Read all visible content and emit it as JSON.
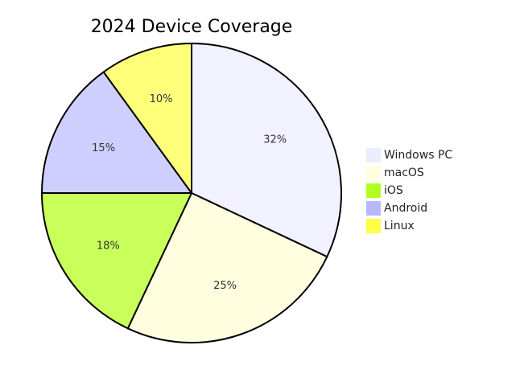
{
  "chart_data": {
    "type": "pie",
    "title": "2024 Device Coverage",
    "categories": [
      "Windows PC",
      "macOS",
      "iOS",
      "Android",
      "Linux"
    ],
    "values": [
      32,
      25,
      18,
      15,
      10
    ],
    "data_labels": [
      "32%",
      "25%",
      "18%",
      "15%",
      "10%"
    ],
    "colors": [
      "#f1f1ff",
      "#ffffe0",
      "#c8ff5a",
      "#cfcfff",
      "#ffff7a"
    ],
    "legend_colors": [
      "#ececff",
      "#ffffde",
      "#b0ff1e",
      "#b8b8ff",
      "#ffff44"
    ],
    "start_angle": "top",
    "direction": "clockwise",
    "legend": "right"
  }
}
